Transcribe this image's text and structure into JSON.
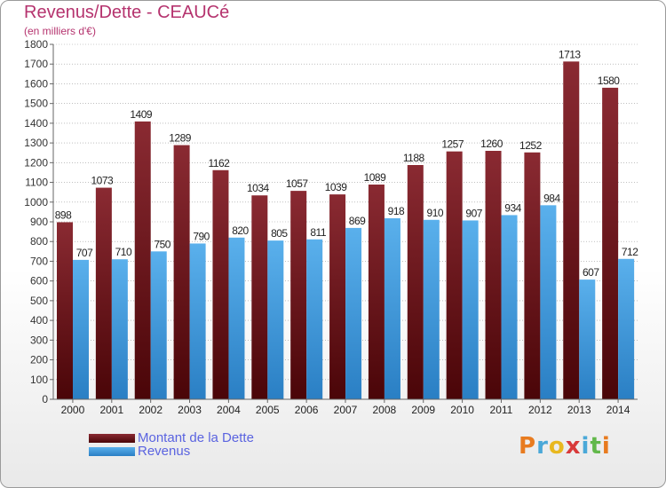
{
  "header": {
    "title": "Revenus/Dette - CEAUCé",
    "subtitle": "(en milliers d'€)"
  },
  "colors": {
    "dette": "#7a1c22",
    "revenus": "#3f9be0",
    "title": "#b5336e",
    "legend_text": "#5a63e0",
    "grid": "#999999"
  },
  "legend": {
    "items": [
      {
        "label": "Montant de la Dette",
        "color": "#7a1c22"
      },
      {
        "label": "Revenus",
        "color": "#3f9be0"
      }
    ]
  },
  "logo": {
    "letters": [
      "P",
      "r",
      "o",
      "x",
      "i",
      "t",
      "i"
    ],
    "colors": [
      "#e87b1f",
      "#4aa8d8",
      "#e8b81f",
      "#d83a3a",
      "#4aa8d8",
      "#62b84a",
      "#e87b1f"
    ]
  },
  "chart_data": {
    "type": "bar",
    "categories": [
      "2000",
      "2001",
      "2002",
      "2003",
      "2004",
      "2005",
      "2006",
      "2007",
      "2008",
      "2009",
      "2010",
      "2011",
      "2012",
      "2013",
      "2014"
    ],
    "series": [
      {
        "name": "Montant de la Dette",
        "values": [
          898,
          1073,
          1409,
          1289,
          1162,
          1034,
          1057,
          1039,
          1089,
          1188,
          1257,
          1260,
          1252,
          1713,
          1580
        ]
      },
      {
        "name": "Revenus",
        "values": [
          707,
          710,
          750,
          790,
          820,
          805,
          811,
          869,
          918,
          910,
          907,
          934,
          984,
          607,
          712
        ]
      }
    ],
    "ylim": [
      0,
      1800
    ],
    "yticks": [
      0,
      100,
      200,
      300,
      400,
      500,
      600,
      700,
      800,
      900,
      1000,
      1100,
      1200,
      1300,
      1400,
      1500,
      1600,
      1700,
      1800
    ],
    "grid": true,
    "legend_position": "bottom-left"
  }
}
